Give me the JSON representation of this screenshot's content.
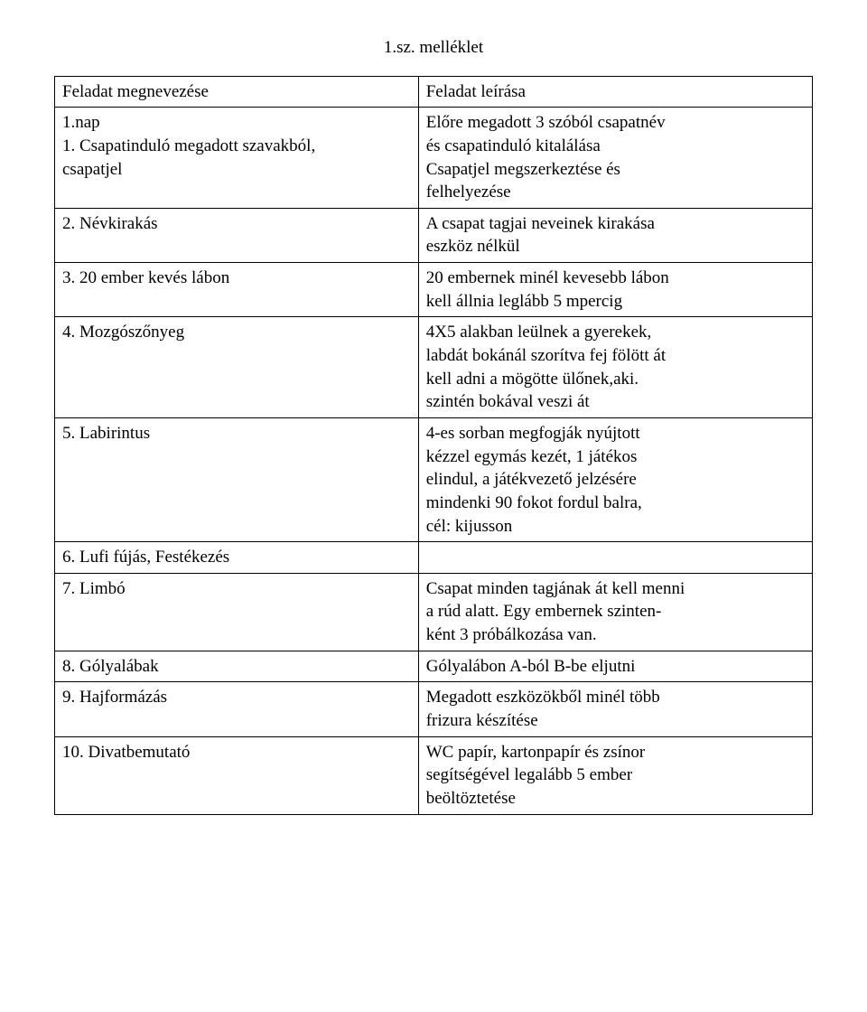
{
  "title": "1.sz. melléklet",
  "header": {
    "left": "Feladat megnevezése",
    "right": "Feladat leírása"
  },
  "rows": [
    {
      "left": [
        "1.nap",
        "1. Csapatinduló megadott szavakból,",
        "csapatjel"
      ],
      "right": [
        "",
        "",
        "Előre megadott 3 szóból csapatnév",
        "és csapatinduló kitalálása",
        "Csapatjel megszerkeztése és",
        "felhelyezése"
      ]
    },
    {
      "left": [
        "2. Névkirakás"
      ],
      "right": [
        "A csapat tagjai neveinek kirakása",
        "eszköz nélkül"
      ]
    },
    {
      "left": [
        "3. 20 ember kevés lábon"
      ],
      "right": [
        " 20 embernek minél kevesebb lábon",
        "kell állnia leglább 5 mpercig"
      ]
    },
    {
      "left": [
        "4. Mozgószőnyeg"
      ],
      "right": [
        "4X5 alakban leülnek a gyerekek,",
        "labdát bokánál szorítva fej fölött át",
        "kell adni a mögötte ülőnek,aki.",
        "szintén bokával veszi át"
      ]
    },
    {
      "left": [
        "5. Labirintus"
      ],
      "right": [
        "4-es sorban megfogják nyújtott",
        "kézzel egymás kezét, 1 játékos",
        "elindul, a játékvezető jelzésére",
        "mindenki 90 fokot fordul balra,",
        "cél: kijusson"
      ]
    },
    {
      "left": [
        "6. Lufi fújás, Festékezés"
      ],
      "right": [
        ""
      ]
    },
    {
      "left": [
        "7. Limbó"
      ],
      "right": [
        "Csapat minden tagjának át kell menni",
        " a rúd alatt. Egy embernek szinten-",
        "ként 3 próbálkozása van."
      ]
    },
    {
      "left": [
        "8. Gólyalábak"
      ],
      "right": [
        "Gólyalábon  A-ból B-be eljutni"
      ]
    },
    {
      "left": [
        "9. Hajformázás"
      ],
      "right": [
        "Megadott eszközökből minél több",
        "frizura készítése"
      ]
    },
    {
      "left": [
        "10. Divatbemutató"
      ],
      "right": [
        "WC papír, kartonpapír és zsínor",
        "segítségével legalább 5 ember",
        "beöltöztetése"
      ]
    }
  ]
}
